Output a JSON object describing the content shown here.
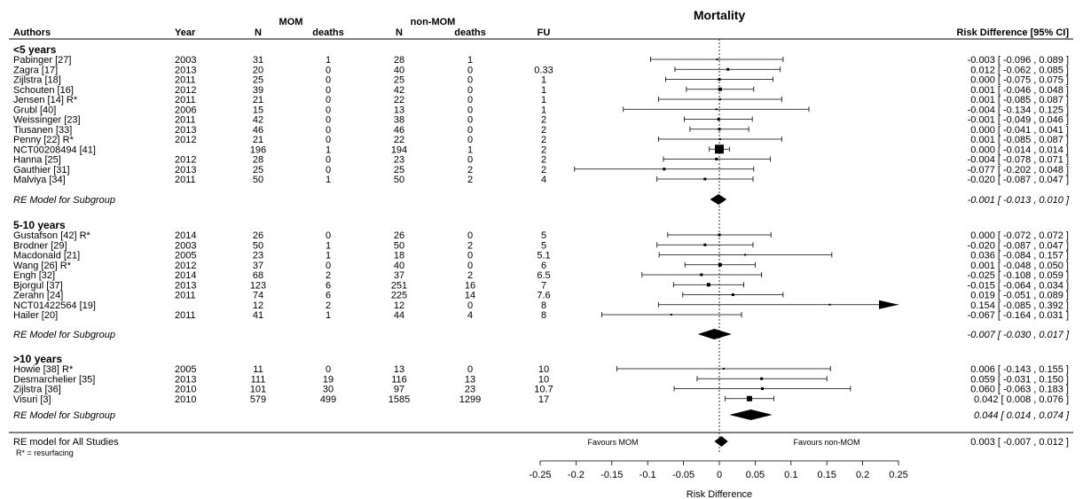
{
  "header": {
    "mortality_title": "Mortality",
    "mom_group": "MOM",
    "nonmom_group": "non-MOM",
    "col_authors": "Authors",
    "col_year": "Year",
    "col_n_mom": "N",
    "col_deaths_mom": "deaths",
    "col_n_nonmom": "N",
    "col_deaths_nonmom": "deaths",
    "col_fu": "FU",
    "col_rd": "Risk Difference [95% CI]"
  },
  "footer": {
    "overall_label": "RE model for All Studies",
    "overall_ci": "0.003 [ -0.007 , 0.012 ]",
    "overall_est": 0.003,
    "overall_lo": -0.007,
    "overall_hi": 0.012,
    "note": "R* = resurfacing",
    "favours_left": "Favours MOM",
    "favours_right": "Favours non-MOM"
  },
  "chart_data": {
    "type": "forest",
    "xlabel": "Risk Difference",
    "xlim": [
      -0.25,
      0.25
    ],
    "ticks": [
      "-0.25",
      "-0.2",
      "-0.15",
      "-0.1",
      "-0.05",
      "0",
      "0.05",
      "0.1",
      "0.15",
      "0.2",
      "0.25"
    ],
    "subgroups": [
      {
        "label": "<5 years",
        "model_label": "RE Model for Subgroup",
        "model_ci": "-0.001 [ -0.013 , 0.010 ]",
        "model_est": -0.001,
        "model_lo": -0.013,
        "model_hi": 0.01,
        "studies": [
          {
            "author": "Pabinger [27]",
            "year": "2003",
            "n_mom": "31",
            "d_mom": "1",
            "n_non": "28",
            "d_non": "1",
            "fu": "",
            "ci": "-0.003 [ -0.096 , 0.089 ]",
            "est": -0.003,
            "lo": -0.096,
            "hi": 0.089,
            "w": 2
          },
          {
            "author": "Zagra [17]",
            "year": "2013",
            "n_mom": "20",
            "d_mom": "0",
            "n_non": "40",
            "d_non": "0",
            "fu": "0.33",
            "ci": "0.012 [ -0.062 , 0.085 ]",
            "est": 0.012,
            "lo": -0.062,
            "hi": 0.085,
            "w": 3
          },
          {
            "author": "Zijlstra [18]",
            "year": "2011",
            "n_mom": "25",
            "d_mom": "0",
            "n_non": "25",
            "d_non": "0",
            "fu": "1",
            "ci": "0.000 [ -0.075 , 0.075 ]",
            "est": 0.0,
            "lo": -0.075,
            "hi": 0.075,
            "w": 3
          },
          {
            "author": "Schouten [16]",
            "year": "2012",
            "n_mom": "39",
            "d_mom": "0",
            "n_non": "42",
            "d_non": "0",
            "fu": "1",
            "ci": "0.001 [ -0.046 , 0.048 ]",
            "est": 0.001,
            "lo": -0.046,
            "hi": 0.048,
            "w": 4
          },
          {
            "author": "Jensen [14]    R*",
            "year": "2011",
            "n_mom": "21",
            "d_mom": "0",
            "n_non": "22",
            "d_non": "0",
            "fu": "1",
            "ci": "0.001 [ -0.085 , 0.087 ]",
            "est": 0.001,
            "lo": -0.085,
            "hi": 0.087,
            "w": 2
          },
          {
            "author": "Grubl [40]",
            "year": "2006",
            "n_mom": "15",
            "d_mom": "0",
            "n_non": "13",
            "d_non": "0",
            "fu": "1",
            "ci": "-0.004 [ -0.134 , 0.125 ]",
            "est": -0.004,
            "lo": -0.134,
            "hi": 0.125,
            "w": 2
          },
          {
            "author": "Weissinger [23]",
            "year": "2011",
            "n_mom": "42",
            "d_mom": "0",
            "n_non": "38",
            "d_non": "0",
            "fu": "2",
            "ci": "-0.001 [ -0.049 , 0.046 ]",
            "est": -0.001,
            "lo": -0.049,
            "hi": 0.046,
            "w": 3
          },
          {
            "author": "Tiusanen [33]",
            "year": "2013",
            "n_mom": "46",
            "d_mom": "0",
            "n_non": "46",
            "d_non": "0",
            "fu": "2",
            "ci": "0.000 [ -0.041 , 0.041 ]",
            "est": 0.0,
            "lo": -0.041,
            "hi": 0.041,
            "w": 3
          },
          {
            "author": "Penny [22]   R*",
            "year": "2012",
            "n_mom": "21",
            "d_mom": "0",
            "n_non": "22",
            "d_non": "0",
            "fu": "2",
            "ci": "0.001 [ -0.085 , 0.087 ]",
            "est": 0.001,
            "lo": -0.085,
            "hi": 0.087,
            "w": 2
          },
          {
            "author": "NCT00208494 [41]",
            "year": "",
            "n_mom": "196",
            "d_mom": "1",
            "n_non": "194",
            "d_non": "1",
            "fu": "2",
            "ci": "0.000 [ -0.014 , 0.014 ]",
            "est": 0.0,
            "lo": -0.014,
            "hi": 0.014,
            "w": 10
          },
          {
            "author": "Hanna [25]",
            "year": "2012",
            "n_mom": "28",
            "d_mom": "0",
            "n_non": "23",
            "d_non": "0",
            "fu": "2",
            "ci": "-0.004 [ -0.078 , 0.071 ]",
            "est": -0.004,
            "lo": -0.078,
            "hi": 0.071,
            "w": 3
          },
          {
            "author": "Gauthier [31]",
            "year": "2013",
            "n_mom": "25",
            "d_mom": "0",
            "n_non": "25",
            "d_non": "2",
            "fu": "2",
            "ci": "-0.077 [ -0.202 , 0.048 ]",
            "est": -0.077,
            "lo": -0.202,
            "hi": 0.048,
            "w": 3
          },
          {
            "author": "Malviya [34]",
            "year": "2011",
            "n_mom": "50",
            "d_mom": "1",
            "n_non": "50",
            "d_non": "2",
            "fu": "4",
            "ci": "-0.020 [ -0.087 , 0.047 ]",
            "est": -0.02,
            "lo": -0.087,
            "hi": 0.047,
            "w": 3
          }
        ]
      },
      {
        "label": "5-10 years",
        "model_label": "RE Model for Subgroup",
        "model_ci": "-0.007 [ -0.030 , 0.017 ]",
        "model_est": -0.007,
        "model_lo": -0.03,
        "model_hi": 0.017,
        "studies": [
          {
            "author": "Gustafson [42]  R*",
            "year": "2014",
            "n_mom": "26",
            "d_mom": "0",
            "n_non": "26",
            "d_non": "0",
            "fu": "5",
            "ci": "0.000 [ -0.072 , 0.072 ]",
            "est": 0.0,
            "lo": -0.072,
            "hi": 0.072,
            "w": 3
          },
          {
            "author": "Brodner [29]",
            "year": "2003",
            "n_mom": "50",
            "d_mom": "1",
            "n_non": "50",
            "d_non": "2",
            "fu": "5",
            "ci": "-0.020 [ -0.087 , 0.047 ]",
            "est": -0.02,
            "lo": -0.087,
            "hi": 0.047,
            "w": 3
          },
          {
            "author": "Macdonald [21]",
            "year": "2005",
            "n_mom": "23",
            "d_mom": "1",
            "n_non": "18",
            "d_non": "0",
            "fu": "5.1",
            "ci": "0.036 [ -0.084 , 0.157 ]",
            "est": 0.036,
            "lo": -0.084,
            "hi": 0.157,
            "w": 2
          },
          {
            "author": "Wang [26]       R*",
            "year": "2012",
            "n_mom": "37",
            "d_mom": "0",
            "n_non": "40",
            "d_non": "0",
            "fu": "6",
            "ci": "0.001 [ -0.048 , 0.050 ]",
            "est": 0.001,
            "lo": -0.048,
            "hi": 0.05,
            "w": 4
          },
          {
            "author": "Engh [32]",
            "year": "2014",
            "n_mom": "68",
            "d_mom": "2",
            "n_non": "37",
            "d_non": "2",
            "fu": "6.5",
            "ci": "-0.025 [ -0.108 , 0.059 ]",
            "est": -0.025,
            "lo": -0.108,
            "hi": 0.059,
            "w": 3
          },
          {
            "author": "Bjorgul [37]",
            "year": "2013",
            "n_mom": "123",
            "d_mom": "6",
            "n_non": "251",
            "d_non": "16",
            "fu": "7",
            "ci": "-0.015 [ -0.064 , 0.034 ]",
            "est": -0.015,
            "lo": -0.064,
            "hi": 0.034,
            "w": 4
          },
          {
            "author": "Zerahn [24]",
            "year": "2011",
            "n_mom": "74",
            "d_mom": "6",
            "n_non": "225",
            "d_non": "14",
            "fu": "7.6",
            "ci": "0.019 [ -0.051 , 0.089 ]",
            "est": 0.019,
            "lo": -0.051,
            "hi": 0.089,
            "w": 3
          },
          {
            "author": "NCT01422564 [19]",
            "year": "",
            "n_mom": "12",
            "d_mom": "2",
            "n_non": "12",
            "d_non": "0",
            "fu": "8",
            "ci": "0.154 [ -0.085 , 0.392 ]",
            "est": 0.154,
            "lo": -0.085,
            "hi": 0.392,
            "w": 2
          },
          {
            "author": "Hailer [20]",
            "year": "2011",
            "n_mom": "41",
            "d_mom": "1",
            "n_non": "44",
            "d_non": "4",
            "fu": "8",
            "ci": "-0.067 [ -0.164 , 0.031 ]",
            "est": -0.067,
            "lo": -0.164,
            "hi": 0.031,
            "w": 2
          }
        ]
      },
      {
        "label": ">10 years",
        "model_label": "RE Model for Subgroup",
        "model_ci": "0.044 [ 0.014 , 0.074 ]",
        "model_est": 0.044,
        "model_lo": 0.014,
        "model_hi": 0.074,
        "studies": [
          {
            "author": "Howie [38]   R*",
            "year": "2005",
            "n_mom": "11",
            "d_mom": "0",
            "n_non": "13",
            "d_non": "0",
            "fu": "10",
            "ci": "0.006 [ -0.143 , 0.155 ]",
            "est": 0.006,
            "lo": -0.143,
            "hi": 0.155,
            "w": 2
          },
          {
            "author": "Desmarchelier [35]",
            "year": "2013",
            "n_mom": "111",
            "d_mom": "19",
            "n_non": "116",
            "d_non": "13",
            "fu": "10",
            "ci": "0.059 [ -0.031 , 0.150 ]",
            "est": 0.059,
            "lo": -0.031,
            "hi": 0.15,
            "w": 3
          },
          {
            "author": "Zijlstra [36]",
            "year": "2010",
            "n_mom": "101",
            "d_mom": "30",
            "n_non": "97",
            "d_non": "23",
            "fu": "10.7",
            "ci": "0.060 [ -0.063 , 0.183 ]",
            "est": 0.06,
            "lo": -0.063,
            "hi": 0.183,
            "w": 3
          },
          {
            "author": "Visuri [3]",
            "year": "2010",
            "n_mom": "579",
            "d_mom": "499",
            "n_non": "1585",
            "d_non": "1299",
            "fu": "17",
            "ci": "0.042 [ 0.008 , 0.076 ]",
            "est": 0.042,
            "lo": 0.008,
            "hi": 0.076,
            "w": 6
          }
        ]
      }
    ]
  }
}
